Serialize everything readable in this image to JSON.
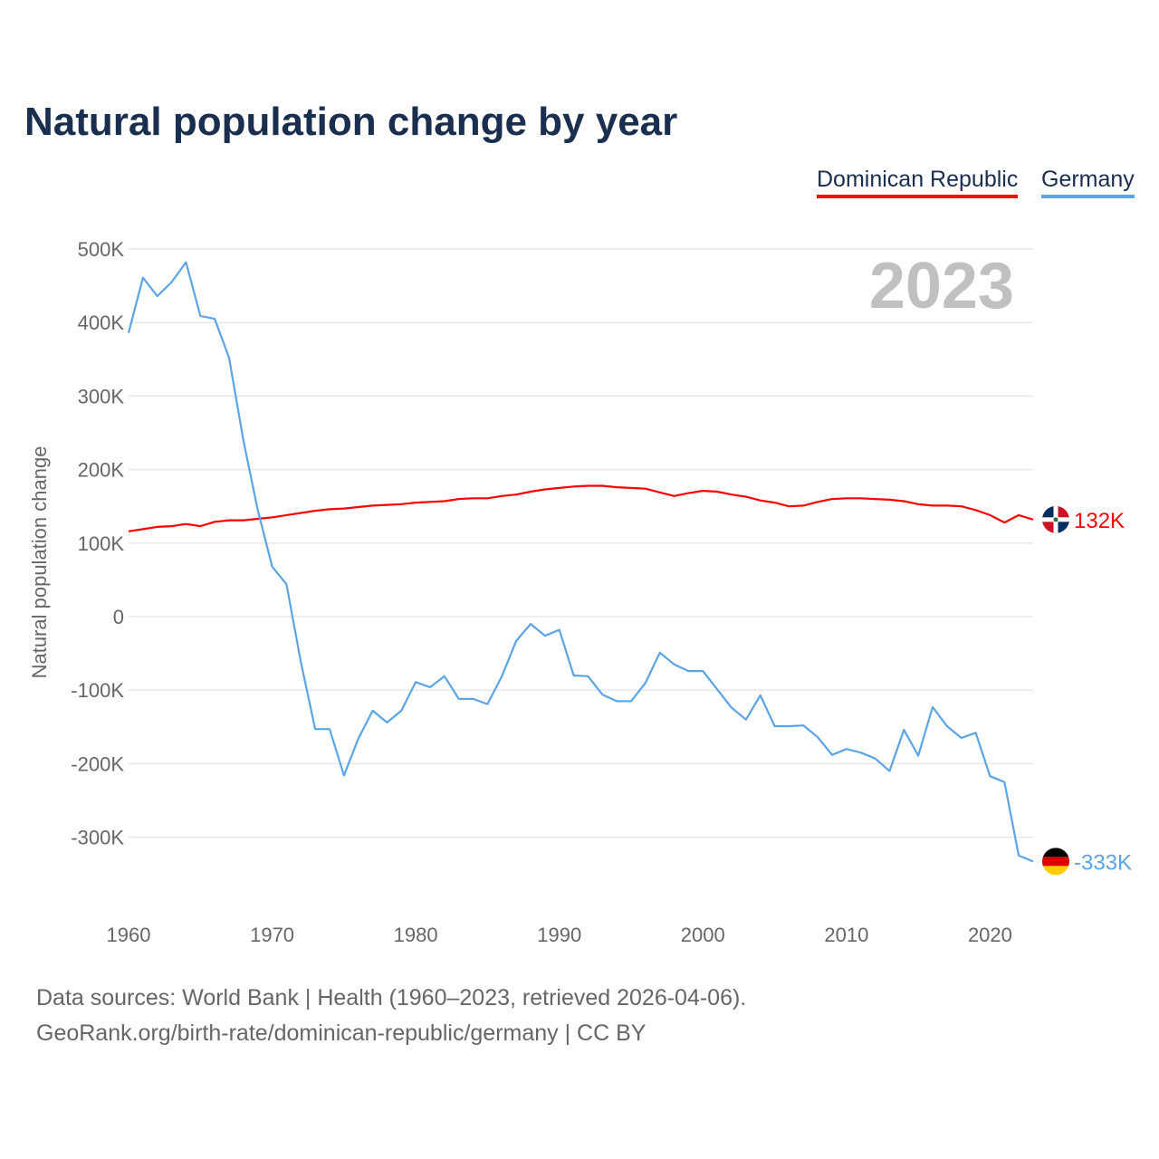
{
  "title": "Natural population change by year",
  "legend": [
    {
      "label": "Dominican Republic",
      "color": "#ff0000"
    },
    {
      "label": "Germany",
      "color": "#5ba4e5"
    }
  ],
  "footer": {
    "line1": "Data sources: World Bank | Health (1960–2023, retrieved 2026-04-06).",
    "line2": "GeoRank.org/birth-rate/dominican-republic/germany | CC BY"
  },
  "chart_data": {
    "type": "line",
    "title": "Natural population change by year",
    "xlabel": "",
    "ylabel": "Natural population change",
    "year_label": "2023",
    "xlim": [
      1960,
      2023
    ],
    "ylim": [
      -400000,
      500000
    ],
    "x_ticks": [
      1960,
      1970,
      1980,
      1990,
      2000,
      2010,
      2020
    ],
    "y_ticks": [
      {
        "value": 500000,
        "label": "500K"
      },
      {
        "value": 400000,
        "label": "400K"
      },
      {
        "value": 300000,
        "label": "300K"
      },
      {
        "value": 200000,
        "label": "200K"
      },
      {
        "value": 100000,
        "label": "100K"
      },
      {
        "value": 0,
        "label": "0"
      },
      {
        "value": -100000,
        "label": "-100K"
      },
      {
        "value": -200000,
        "label": "-200K"
      },
      {
        "value": -300000,
        "label": "-300K"
      }
    ],
    "grid": true,
    "legend_position": "top-right",
    "x_start": 1960,
    "series": [
      {
        "name": "Dominican Republic",
        "color": "#ff0000",
        "end_label": "132K",
        "values_k": [
          116,
          119,
          122,
          123,
          126,
          123,
          129,
          131,
          131,
          133,
          135,
          138,
          141,
          144,
          146,
          147,
          149,
          151,
          152,
          153,
          155,
          156,
          157,
          160,
          161,
          161,
          164,
          166,
          170,
          173,
          175,
          177,
          178,
          178,
          176,
          175,
          174,
          169,
          164,
          168,
          171,
          170,
          166,
          163,
          158,
          155,
          150,
          151,
          156,
          160,
          161,
          161,
          160,
          159,
          157,
          153,
          151,
          151,
          150,
          145,
          138,
          128,
          138,
          132
        ]
      },
      {
        "name": "Germany",
        "color": "#5ba4e5",
        "end_label": "-333K",
        "values_k": [
          386,
          461,
          436,
          455,
          482,
          409,
          405,
          352,
          239,
          145,
          68,
          44,
          -62,
          -153,
          -153,
          -216,
          -166,
          -128,
          -144,
          -128,
          -89,
          -96,
          -81,
          -112,
          -112,
          -119,
          -81,
          -33,
          -10,
          -26,
          -18,
          -80,
          -81,
          -106,
          -115,
          -115,
          -90,
          -49,
          -65,
          -74,
          -74,
          -99,
          -124,
          -140,
          -107,
          -149,
          -149,
          -148,
          -164,
          -188,
          -180,
          -185,
          -193,
          -210,
          -154,
          -189,
          -123,
          -149,
          -165,
          -158,
          -217,
          -225,
          -325,
          -333
        ]
      }
    ]
  }
}
